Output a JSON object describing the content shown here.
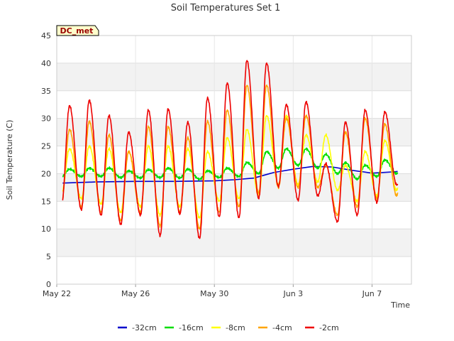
{
  "chart_data": {
    "type": "line",
    "title": "Soil Temperatures Set 1",
    "xlabel": "Time",
    "ylabel": "Soil Temperature (C)",
    "site_badge": "DC_met",
    "ylim": [
      0,
      45
    ],
    "yticks": [
      0,
      5,
      10,
      15,
      20,
      25,
      30,
      35,
      40,
      45
    ],
    "xlim_days": [
      0,
      18
    ],
    "xticks": [
      {
        "day": 0,
        "label": "May 22"
      },
      {
        "day": 4,
        "label": "May 26"
      },
      {
        "day": 8,
        "label": "May 30"
      },
      {
        "day": 12,
        "label": "Jun 3"
      },
      {
        "day": 16,
        "label": "Jun 7"
      }
    ],
    "grid": true,
    "legend_position": "bottom",
    "x_unit": "days since May 22",
    "daily_peak_day_fraction": 0.65,
    "series": [
      {
        "name": "-32cm",
        "color": "#0000cc",
        "points": [
          [
            0.3,
            18.3
          ],
          [
            2,
            18.5
          ],
          [
            4,
            18.6
          ],
          [
            6,
            18.6
          ],
          [
            8,
            18.7
          ],
          [
            9,
            18.9
          ],
          [
            10,
            19.2
          ],
          [
            11,
            20.2
          ],
          [
            12,
            20.8
          ],
          [
            13,
            21.3
          ],
          [
            14,
            21.2
          ],
          [
            15,
            20.6
          ],
          [
            16,
            20.1
          ],
          [
            17,
            20.3
          ],
          [
            17.3,
            20.4
          ]
        ]
      },
      {
        "name": "-16cm",
        "color": "#00dd00",
        "points": [],
        "days": [
          {
            "max": 20.8,
            "min": 19.5
          },
          {
            "max": 21.0,
            "min": 19.5
          },
          {
            "max": 21.0,
            "min": 19.5
          },
          {
            "max": 20.5,
            "min": 19.3
          },
          {
            "max": 20.7,
            "min": 19.2
          },
          {
            "max": 21.0,
            "min": 19.3
          },
          {
            "max": 20.8,
            "min": 19.2
          },
          {
            "max": 20.5,
            "min": 19.0
          },
          {
            "max": 21.0,
            "min": 19.3
          },
          {
            "max": 22.0,
            "min": 19.5
          },
          {
            "max": 24.0,
            "min": 20.0
          },
          {
            "max": 24.5,
            "min": 21.0
          },
          {
            "max": 24.5,
            "min": 21.5
          },
          {
            "max": 23.5,
            "min": 21.0
          },
          {
            "max": 22.0,
            "min": 20.0
          },
          {
            "max": 21.5,
            "min": 19.0
          },
          {
            "max": 22.5,
            "min": 19.5
          },
          {
            "max": 22.5,
            "min": 20.0
          }
        ]
      },
      {
        "name": "-8cm",
        "color": "#ffff00",
        "points": [],
        "days": [
          {
            "max": 24.5,
            "min": 16.5
          },
          {
            "max": 25.0,
            "min": 15.5
          },
          {
            "max": 24.5,
            "min": 14.5
          },
          {
            "max": 24.0,
            "min": 13.0
          },
          {
            "max": 25.0,
            "min": 14.0
          },
          {
            "max": 25.0,
            "min": 12.5
          },
          {
            "max": 24.5,
            "min": 14.0
          },
          {
            "max": 24.0,
            "min": 12.0
          },
          {
            "max": 26.5,
            "min": 15.0
          },
          {
            "max": 28.0,
            "min": 15.5
          },
          {
            "max": 30.5,
            "min": 16.0
          },
          {
            "max": 30.5,
            "min": 18.0
          },
          {
            "max": 27.0,
            "min": 18.0
          },
          {
            "max": 27.0,
            "min": 18.5
          },
          {
            "max": 21.5,
            "min": 17.0
          },
          {
            "max": 24.0,
            "min": 15.0
          },
          {
            "max": 26.0,
            "min": 16.0
          },
          {
            "max": 25.5,
            "min": 17.0
          }
        ]
      },
      {
        "name": "-4cm",
        "color": "#ffa500",
        "points": [],
        "days": [
          {
            "max": 28.0,
            "min": 15.0
          },
          {
            "max": 29.5,
            "min": 14.0
          },
          {
            "max": 27.0,
            "min": 13.0
          },
          {
            "max": 24.0,
            "min": 11.5
          },
          {
            "max": 28.5,
            "min": 13.0
          },
          {
            "max": 28.5,
            "min": 10.5
          },
          {
            "max": 26.5,
            "min": 13.0
          },
          {
            "max": 29.5,
            "min": 10.0
          },
          {
            "max": 31.5,
            "min": 13.0
          },
          {
            "max": 36.0,
            "min": 14.0
          },
          {
            "max": 36.0,
            "min": 16.5
          },
          {
            "max": 30.0,
            "min": 17.5
          },
          {
            "max": 30.5,
            "min": 17.5
          },
          {
            "max": 21.5,
            "min": 17.5
          },
          {
            "max": 27.5,
            "min": 12.5
          },
          {
            "max": 30.0,
            "min": 14.0
          },
          {
            "max": 29.0,
            "min": 15.5
          },
          {
            "max": 27.0,
            "min": 16.0
          }
        ]
      },
      {
        "name": "-2cm",
        "color": "#ee0000",
        "points": [],
        "days": [
          {
            "max": 32.3,
            "min": 14.5
          },
          {
            "max": 33.3,
            "min": 13.5
          },
          {
            "max": 30.5,
            "min": 12.5
          },
          {
            "max": 27.5,
            "min": 10.8
          },
          {
            "max": 31.5,
            "min": 12.5
          },
          {
            "max": 31.7,
            "min": 8.8
          },
          {
            "max": 29.3,
            "min": 12.7
          },
          {
            "max": 33.7,
            "min": 8.3
          },
          {
            "max": 36.4,
            "min": 12.2
          },
          {
            "max": 40.5,
            "min": 12.0
          },
          {
            "max": 40.0,
            "min": 15.5
          },
          {
            "max": 32.5,
            "min": 17.7
          },
          {
            "max": 33.0,
            "min": 15.2
          },
          {
            "max": 21.8,
            "min": 16.0
          },
          {
            "max": 29.3,
            "min": 11.3
          },
          {
            "max": 31.5,
            "min": 12.5
          },
          {
            "max": 31.2,
            "min": 14.8
          },
          {
            "max": 18.0,
            "min": 18.0
          }
        ]
      }
    ]
  }
}
